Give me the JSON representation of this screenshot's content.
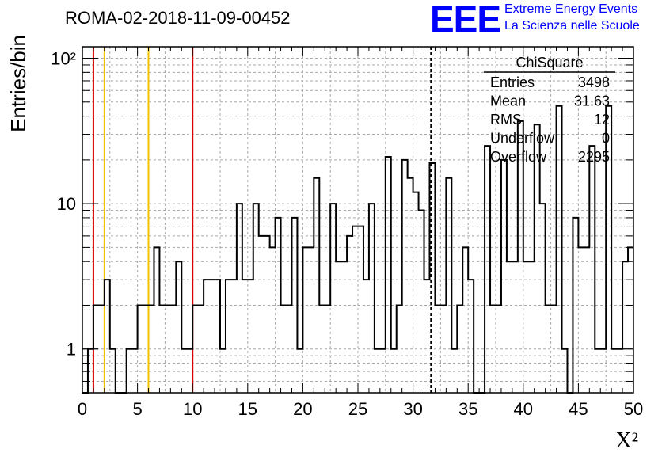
{
  "title": "ROMA-02-2018-11-09-00452",
  "logo": {
    "mark": "EEE",
    "line1": "Extreme Energy Events",
    "line2": "La Scienza nelle Scuole"
  },
  "stats": {
    "header": "ChiSquare",
    "rows": [
      {
        "label": "Entries",
        "value": "3498"
      },
      {
        "label": "Mean",
        "value": "31.63"
      },
      {
        "label": "RMS",
        "value": "12"
      },
      {
        "label": "Underflow",
        "value": "0"
      },
      {
        "label": "Overflow",
        "value": "2295"
      }
    ]
  },
  "colors": {
    "red_lines": "#dd0000",
    "yellow_lines": "#f2c200",
    "hist": "#000000",
    "logo": "#0000ff"
  },
  "chart_data": {
    "type": "histogram",
    "ylabel": "Entries/bin",
    "xlabel": "X²",
    "xlim": [
      0,
      50
    ],
    "ylim": [
      0.5,
      120
    ],
    "yscale": "log",
    "grid": true,
    "bin_width": 0.5,
    "x_ticks": [
      0,
      5,
      10,
      15,
      20,
      25,
      30,
      35,
      40,
      45,
      50
    ],
    "x_tick_labels": [
      "0",
      "5",
      "10",
      "15",
      "20",
      "25",
      "30",
      "35",
      "40",
      "45",
      "50"
    ],
    "y_ticks": [
      1,
      10,
      100
    ],
    "y_tick_labels": [
      "1",
      "10",
      "10²"
    ],
    "values": [
      0,
      1,
      2,
      2,
      3,
      1,
      0,
      0,
      1,
      1,
      2,
      2,
      2,
      5,
      2,
      2,
      2,
      4,
      1,
      1,
      2,
      2,
      3,
      3,
      3,
      1,
      3,
      3,
      10,
      3,
      3,
      10,
      6,
      6,
      5,
      8,
      2,
      2,
      8,
      1,
      5,
      5,
      15,
      2,
      2,
      10,
      4,
      4,
      6,
      7,
      7,
      3,
      10,
      1,
      1,
      21,
      1,
      2,
      20,
      15,
      12,
      9,
      3,
      19,
      2,
      2,
      15,
      1,
      2,
      5,
      3,
      0,
      0,
      25,
      2,
      2,
      20,
      4,
      4,
      37,
      4,
      4,
      35,
      10,
      2,
      2,
      47,
      1,
      0,
      8,
      5,
      5,
      25,
      1,
      1,
      47,
      1,
      1,
      4,
      5
    ],
    "vertical_lines": [
      {
        "x": 1,
        "color": "red",
        "style": "solid"
      },
      {
        "x": 2,
        "color": "yellow",
        "style": "solid"
      },
      {
        "x": 6,
        "color": "yellow",
        "style": "solid"
      },
      {
        "x": 10,
        "color": "red",
        "style": "solid"
      },
      {
        "x": 31.63,
        "color": "black",
        "style": "dashed"
      }
    ]
  }
}
